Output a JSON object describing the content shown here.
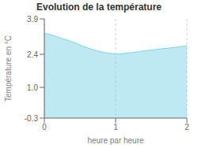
{
  "chart_data": {
    "type": "area",
    "title": "Evolution de la température",
    "xlabel": "heure par heure",
    "ylabel": "Température en °C",
    "x": [
      0,
      0.1,
      0.2,
      0.3,
      0.4,
      0.5,
      0.6,
      0.7,
      0.8,
      0.9,
      1.0,
      1.05,
      1.1,
      1.2,
      1.3,
      1.4,
      1.5,
      1.6,
      1.7,
      1.8,
      1.9,
      2.0
    ],
    "values": [
      3.3,
      3.22,
      3.12,
      3.02,
      2.92,
      2.8,
      2.68,
      2.58,
      2.5,
      2.45,
      2.42,
      2.42,
      2.43,
      2.46,
      2.5,
      2.55,
      2.58,
      2.62,
      2.65,
      2.68,
      2.72,
      2.76
    ],
    "color": "#7dd4e8",
    "xlim": [
      0,
      2
    ],
    "ylim": [
      -0.3,
      3.9
    ],
    "xticks": [
      0,
      1,
      2
    ],
    "yticks": [
      -0.3,
      {
        "value": 1.0,
        "label": "1.0"
      },
      2.4,
      3.9
    ],
    "grid": "x"
  }
}
